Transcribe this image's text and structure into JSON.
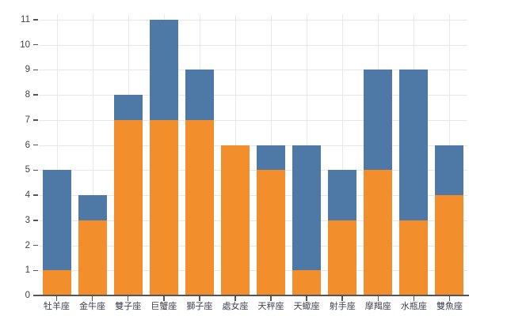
{
  "chart_data": {
    "type": "bar",
    "stacked": true,
    "orientation": "vertical",
    "title": "",
    "xlabel": "",
    "ylabel": "",
    "categories": [
      "牡羊座",
      "金牛座",
      "雙子座",
      "巨蟹座",
      "獅子座",
      "處女座",
      "天秤座",
      "天蠍座",
      "射手座",
      "摩羯座",
      "水瓶座",
      "雙魚座"
    ],
    "series": [
      {
        "name": "bottom-segment-orange",
        "color": "#f28e2b",
        "values": [
          1,
          3,
          7,
          7,
          7,
          6,
          5,
          1,
          3,
          5,
          3,
          4
        ]
      },
      {
        "name": "top-segment-blue",
        "color": "#4e79a7",
        "values": [
          4,
          1,
          1,
          4,
          2,
          0,
          1,
          5,
          2,
          4,
          6,
          2
        ]
      }
    ],
    "totals": [
      5,
      4,
      8,
      11,
      9,
      6,
      6,
      6,
      5,
      9,
      9,
      6
    ],
    "ylim": [
      0,
      11
    ],
    "yticks": [
      0,
      1,
      2,
      3,
      4,
      5,
      6,
      7,
      8,
      9,
      10,
      11
    ],
    "grid": {
      "horizontal": "on, at integer values",
      "vertical": "on, at category centers"
    },
    "legend": "none"
  },
  "style": {
    "background": "#ffffff",
    "grid_color_h": "#e7e7e7",
    "grid_color_v": "#eaeaea",
    "axis_line_color": "#555555",
    "tick_color": "#555555",
    "ytick_label_color": "#444444",
    "xtick_label_color": "#3d4350"
  }
}
